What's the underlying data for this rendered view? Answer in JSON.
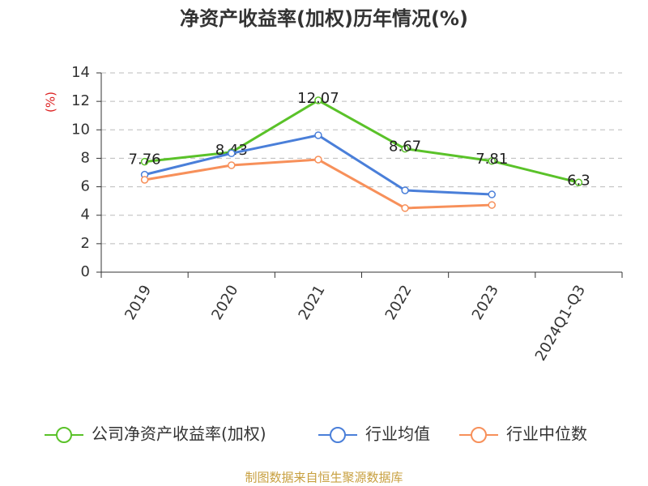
{
  "chart_data": {
    "type": "line",
    "title": "净资产收益率(加权)历年情况(%)",
    "y_label": "(%)",
    "categories": [
      "2019",
      "2020",
      "2021",
      "2022",
      "2023",
      "2024Q1-Q3"
    ],
    "series": [
      {
        "name": "公司净资产收益率(加权)",
        "color": "#5ac229",
        "values": [
          7.76,
          8.43,
          12.07,
          8.67,
          7.81,
          6.3
        ],
        "labels": true
      },
      {
        "name": "行业均值",
        "color": "#4a7fd9",
        "values": [
          6.85,
          8.35,
          9.62,
          5.75,
          5.46,
          null
        ]
      },
      {
        "name": "行业中位数",
        "color": "#f7905a",
        "values": [
          6.49,
          7.51,
          7.91,
          4.5,
          4.72,
          null
        ]
      }
    ],
    "ylim": [
      0,
      14
    ],
    "yticks": [
      0,
      2,
      4,
      6,
      8,
      10,
      12,
      14
    ],
    "grid": true,
    "footer": "制图数据来自恒生聚源数据库"
  }
}
